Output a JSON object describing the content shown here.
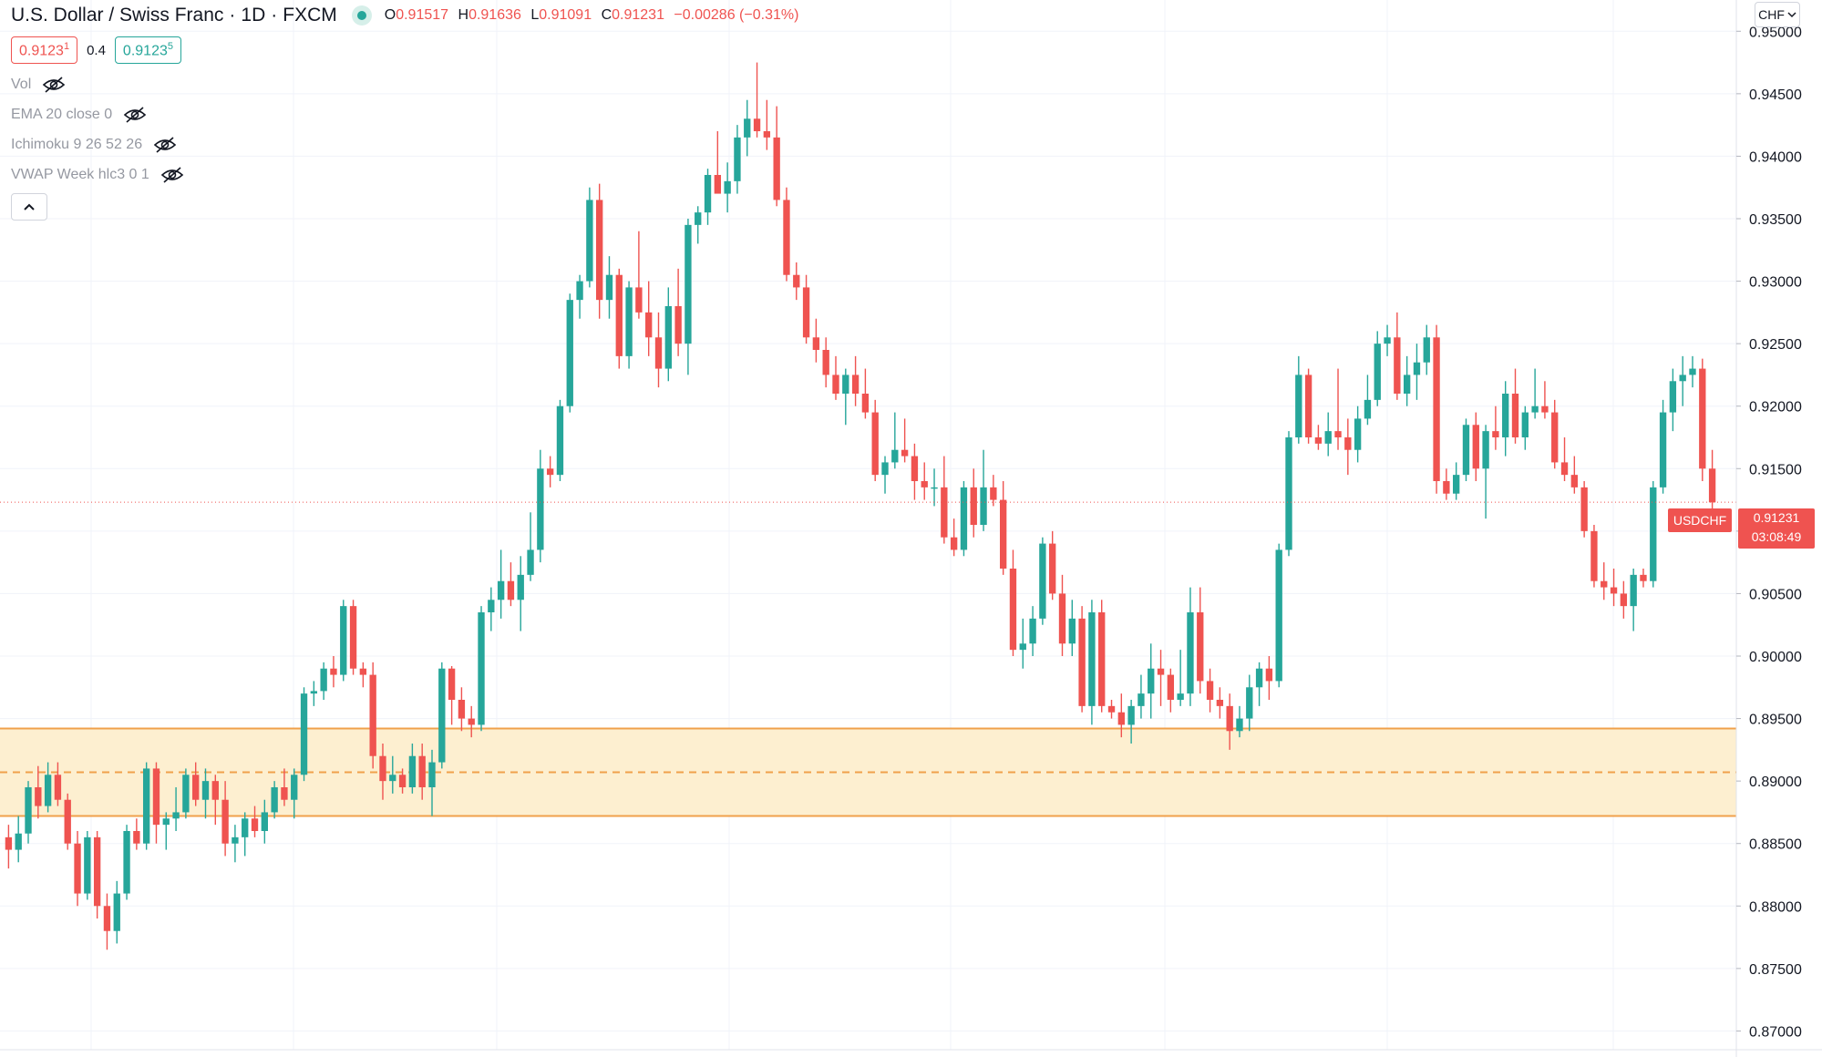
{
  "header": {
    "symbol_name": "U.S. Dollar / Swiss Franc",
    "interval": "1D",
    "exchange": "FXCM",
    "open_key": "O",
    "open": "0.91517",
    "high_key": "H",
    "high": "0.91636",
    "low_key": "L",
    "low": "0.91091",
    "close_key": "C",
    "close": "0.91231",
    "change": "−0.00286 (−0.31%)"
  },
  "trade": {
    "sell_price": "0.9123",
    "sell_sup": "1",
    "spread": "0.4",
    "buy_price": "0.9123",
    "buy_sup": "5"
  },
  "indicators": [
    {
      "label": "Vol"
    },
    {
      "label": "EMA 20 close 0"
    },
    {
      "label": "Ichimoku 9 26 52 26"
    },
    {
      "label": "VWAP Week hlc3 0 1"
    }
  ],
  "currency_button": "CHF",
  "last_price_tag": {
    "symbol": "USDCHF",
    "price": "0.91231",
    "countdown": "03:08:49"
  },
  "colors": {
    "up": "#26a69a",
    "down": "#ef5350",
    "zone_fill": "#fdefd0",
    "zone_line": "#f0a04b",
    "grid": "#f0f3fa"
  },
  "chart_data": {
    "type": "candlestick",
    "title": "U.S. Dollar / Swiss Franc",
    "xlabel": "",
    "ylabel": "",
    "ylim": [
      0.8685,
      0.9525
    ],
    "y_ticks": [
      "0.87000",
      "0.87500",
      "0.88000",
      "0.88500",
      "0.89000",
      "0.89500",
      "0.90000",
      "0.90500",
      "0.91000",
      "0.91500",
      "0.92000",
      "0.92500",
      "0.93000",
      "0.93500",
      "0.94000",
      "0.94500",
      "0.95000"
    ],
    "grid": true,
    "last_price": 0.91231,
    "support_zone": {
      "top": 0.8942,
      "mid": 0.8907,
      "bottom": 0.8872
    },
    "series": [
      {
        "ohlc": [
          [
            0.8855,
            0.8865,
            0.883,
            0.8845
          ],
          [
            0.8845,
            0.8872,
            0.8835,
            0.8858
          ],
          [
            0.8858,
            0.89,
            0.885,
            0.8895
          ],
          [
            0.8895,
            0.8912,
            0.887,
            0.888
          ],
          [
            0.888,
            0.8915,
            0.8875,
            0.8905
          ],
          [
            0.8905,
            0.8915,
            0.888,
            0.8885
          ],
          [
            0.8885,
            0.889,
            0.8845,
            0.885
          ],
          [
            0.885,
            0.886,
            0.88,
            0.881
          ],
          [
            0.881,
            0.886,
            0.8805,
            0.8855
          ],
          [
            0.8855,
            0.886,
            0.879,
            0.88
          ],
          [
            0.88,
            0.881,
            0.8765,
            0.878
          ],
          [
            0.878,
            0.882,
            0.877,
            0.881
          ],
          [
            0.881,
            0.8865,
            0.8805,
            0.886
          ],
          [
            0.886,
            0.887,
            0.8845,
            0.885
          ],
          [
            0.885,
            0.8915,
            0.8845,
            0.891
          ],
          [
            0.891,
            0.8915,
            0.885,
            0.8865
          ],
          [
            0.8865,
            0.8875,
            0.8845,
            0.887
          ],
          [
            0.887,
            0.8895,
            0.886,
            0.8875
          ],
          [
            0.8875,
            0.891,
            0.887,
            0.8905
          ],
          [
            0.8905,
            0.8915,
            0.888,
            0.8885
          ],
          [
            0.8885,
            0.891,
            0.887,
            0.89
          ],
          [
            0.89,
            0.8905,
            0.8865,
            0.8885
          ],
          [
            0.8885,
            0.89,
            0.884,
            0.885
          ],
          [
            0.885,
            0.8865,
            0.8835,
            0.8855
          ],
          [
            0.8855,
            0.8875,
            0.884,
            0.887
          ],
          [
            0.887,
            0.888,
            0.8855,
            0.886
          ],
          [
            0.886,
            0.8885,
            0.885,
            0.8875
          ],
          [
            0.8875,
            0.89,
            0.887,
            0.8895
          ],
          [
            0.8895,
            0.891,
            0.888,
            0.8885
          ],
          [
            0.8885,
            0.891,
            0.887,
            0.8905
          ],
          [
            0.8905,
            0.8975,
            0.89,
            0.897
          ],
          [
            0.897,
            0.898,
            0.896,
            0.8972
          ],
          [
            0.8972,
            0.8995,
            0.8965,
            0.899
          ],
          [
            0.899,
            0.9,
            0.8975,
            0.8985
          ],
          [
            0.8985,
            0.9045,
            0.898,
            0.904
          ],
          [
            0.904,
            0.9045,
            0.8985,
            0.899
          ],
          [
            0.899,
            0.8995,
            0.8975,
            0.8985
          ],
          [
            0.8985,
            0.8995,
            0.891,
            0.892
          ],
          [
            0.892,
            0.893,
            0.8885,
            0.89
          ],
          [
            0.89,
            0.892,
            0.889,
            0.8905
          ],
          [
            0.8905,
            0.891,
            0.889,
            0.8895
          ],
          [
            0.8895,
            0.893,
            0.889,
            0.892
          ],
          [
            0.892,
            0.893,
            0.8885,
            0.8895
          ],
          [
            0.8895,
            0.8925,
            0.8872,
            0.8915
          ],
          [
            0.8915,
            0.8995,
            0.891,
            0.899
          ],
          [
            0.899,
            0.8992,
            0.8945,
            0.8965
          ],
          [
            0.8965,
            0.8975,
            0.894,
            0.895
          ],
          [
            0.895,
            0.896,
            0.8935,
            0.8945
          ],
          [
            0.8945,
            0.904,
            0.894,
            0.9035
          ],
          [
            0.9035,
            0.9055,
            0.902,
            0.9045
          ],
          [
            0.9045,
            0.9085,
            0.903,
            0.906
          ],
          [
            0.906,
            0.9075,
            0.904,
            0.9045
          ],
          [
            0.9045,
            0.908,
            0.902,
            0.9065
          ],
          [
            0.9065,
            0.9115,
            0.906,
            0.9085
          ],
          [
            0.9085,
            0.9165,
            0.9075,
            0.915
          ],
          [
            0.915,
            0.916,
            0.9135,
            0.9145
          ],
          [
            0.9145,
            0.9205,
            0.914,
            0.92
          ],
          [
            0.92,
            0.929,
            0.9195,
            0.9285
          ],
          [
            0.9285,
            0.9305,
            0.927,
            0.93
          ],
          [
            0.93,
            0.9375,
            0.9295,
            0.9365
          ],
          [
            0.9365,
            0.9378,
            0.927,
            0.9285
          ],
          [
            0.9285,
            0.932,
            0.927,
            0.9305
          ],
          [
            0.9305,
            0.931,
            0.923,
            0.924
          ],
          [
            0.924,
            0.93,
            0.923,
            0.9295
          ],
          [
            0.9295,
            0.934,
            0.927,
            0.9275
          ],
          [
            0.9275,
            0.93,
            0.924,
            0.9255
          ],
          [
            0.9255,
            0.9275,
            0.9215,
            0.923
          ],
          [
            0.923,
            0.9295,
            0.922,
            0.928
          ],
          [
            0.928,
            0.931,
            0.924,
            0.925
          ],
          [
            0.925,
            0.935,
            0.9225,
            0.9345
          ],
          [
            0.9345,
            0.936,
            0.933,
            0.9355
          ],
          [
            0.9355,
            0.939,
            0.9345,
            0.9385
          ],
          [
            0.9385,
            0.942,
            0.9375,
            0.937
          ],
          [
            0.937,
            0.9395,
            0.9355,
            0.938
          ],
          [
            0.938,
            0.9425,
            0.937,
            0.9415
          ],
          [
            0.9415,
            0.9445,
            0.94,
            0.943
          ],
          [
            0.943,
            0.9475,
            0.9415,
            0.942
          ],
          [
            0.942,
            0.9445,
            0.9405,
            0.9415
          ],
          [
            0.9415,
            0.944,
            0.936,
            0.9365
          ],
          [
            0.9365,
            0.9375,
            0.93,
            0.9305
          ],
          [
            0.9305,
            0.9315,
            0.9285,
            0.9295
          ],
          [
            0.9295,
            0.9305,
            0.925,
            0.9255
          ],
          [
            0.9255,
            0.927,
            0.9235,
            0.9245
          ],
          [
            0.9245,
            0.9255,
            0.9215,
            0.9225
          ],
          [
            0.9225,
            0.924,
            0.9205,
            0.921
          ],
          [
            0.921,
            0.923,
            0.9185,
            0.9225
          ],
          [
            0.9225,
            0.924,
            0.92,
            0.921
          ],
          [
            0.921,
            0.923,
            0.919,
            0.9195
          ],
          [
            0.9195,
            0.9205,
            0.914,
            0.9145
          ],
          [
            0.9145,
            0.916,
            0.913,
            0.9155
          ],
          [
            0.9155,
            0.9195,
            0.915,
            0.9165
          ],
          [
            0.9165,
            0.919,
            0.9155,
            0.916
          ],
          [
            0.916,
            0.917,
            0.9125,
            0.914
          ],
          [
            0.914,
            0.9155,
            0.9125,
            0.9135
          ],
          [
            0.9135,
            0.915,
            0.912,
            0.9135
          ],
          [
            0.9135,
            0.916,
            0.909,
            0.9095
          ],
          [
            0.9095,
            0.911,
            0.908,
            0.9085
          ],
          [
            0.9085,
            0.914,
            0.908,
            0.9135
          ],
          [
            0.9135,
            0.915,
            0.9095,
            0.9105
          ],
          [
            0.9105,
            0.9165,
            0.91,
            0.9135
          ],
          [
            0.9135,
            0.9145,
            0.912,
            0.9125
          ],
          [
            0.9125,
            0.914,
            0.9065,
            0.907
          ],
          [
            0.907,
            0.9085,
            0.9,
            0.9005
          ],
          [
            0.9005,
            0.903,
            0.899,
            0.901
          ],
          [
            0.901,
            0.904,
            0.9,
            0.903
          ],
          [
            0.903,
            0.9095,
            0.9025,
            0.909
          ],
          [
            0.909,
            0.91,
            0.9045,
            0.905
          ],
          [
            0.905,
            0.9065,
            0.9,
            0.901
          ],
          [
            0.901,
            0.9045,
            0.9,
            0.903
          ],
          [
            0.903,
            0.904,
            0.8955,
            0.896
          ],
          [
            0.896,
            0.9045,
            0.8945,
            0.9035
          ],
          [
            0.9035,
            0.9045,
            0.8955,
            0.896
          ],
          [
            0.896,
            0.8965,
            0.895,
            0.8955
          ],
          [
            0.8955,
            0.897,
            0.8935,
            0.8945
          ],
          [
            0.8945,
            0.8965,
            0.893,
            0.896
          ],
          [
            0.896,
            0.8985,
            0.895,
            0.897
          ],
          [
            0.897,
            0.901,
            0.895,
            0.899
          ],
          [
            0.899,
            0.9005,
            0.896,
            0.8985
          ],
          [
            0.8985,
            0.899,
            0.8955,
            0.8965
          ],
          [
            0.8965,
            0.9005,
            0.896,
            0.897
          ],
          [
            0.897,
            0.9055,
            0.896,
            0.9035
          ],
          [
            0.9035,
            0.9055,
            0.897,
            0.898
          ],
          [
            0.898,
            0.899,
            0.8955,
            0.8965
          ],
          [
            0.8965,
            0.8975,
            0.895,
            0.896
          ],
          [
            0.896,
            0.897,
            0.8925,
            0.894
          ],
          [
            0.894,
            0.896,
            0.8935,
            0.895
          ],
          [
            0.895,
            0.8985,
            0.894,
            0.8975
          ],
          [
            0.8975,
            0.8995,
            0.896,
            0.899
          ],
          [
            0.899,
            0.9,
            0.8965,
            0.898
          ],
          [
            0.898,
            0.909,
            0.8975,
            0.9085
          ],
          [
            0.9085,
            0.918,
            0.908,
            0.9175
          ],
          [
            0.9175,
            0.924,
            0.917,
            0.9225
          ],
          [
            0.9225,
            0.923,
            0.917,
            0.9175
          ],
          [
            0.9175,
            0.9185,
            0.9165,
            0.917
          ],
          [
            0.917,
            0.9195,
            0.916,
            0.918
          ],
          [
            0.918,
            0.923,
            0.9165,
            0.9175
          ],
          [
            0.9175,
            0.919,
            0.9145,
            0.9165
          ],
          [
            0.9165,
            0.92,
            0.9155,
            0.919
          ],
          [
            0.919,
            0.9225,
            0.9185,
            0.9205
          ],
          [
            0.9205,
            0.926,
            0.92,
            0.925
          ],
          [
            0.925,
            0.9265,
            0.924,
            0.9255
          ],
          [
            0.9255,
            0.9275,
            0.9205,
            0.921
          ],
          [
            0.921,
            0.924,
            0.92,
            0.9225
          ],
          [
            0.9225,
            0.925,
            0.9205,
            0.9235
          ],
          [
            0.9235,
            0.9265,
            0.9225,
            0.9255
          ],
          [
            0.9255,
            0.9265,
            0.913,
            0.914
          ],
          [
            0.914,
            0.915,
            0.9125,
            0.913
          ],
          [
            0.913,
            0.9155,
            0.9125,
            0.9145
          ],
          [
            0.9145,
            0.919,
            0.914,
            0.9185
          ],
          [
            0.9185,
            0.9195,
            0.914,
            0.915
          ],
          [
            0.915,
            0.9185,
            0.911,
            0.918
          ],
          [
            0.918,
            0.92,
            0.9165,
            0.9175
          ],
          [
            0.9175,
            0.922,
            0.916,
            0.921
          ],
          [
            0.921,
            0.923,
            0.917,
            0.9175
          ],
          [
            0.9175,
            0.92,
            0.9165,
            0.9195
          ],
          [
            0.9195,
            0.923,
            0.919,
            0.92
          ],
          [
            0.92,
            0.922,
            0.919,
            0.9195
          ],
          [
            0.9195,
            0.9205,
            0.915,
            0.9155
          ],
          [
            0.9155,
            0.9175,
            0.914,
            0.9145
          ],
          [
            0.9145,
            0.916,
            0.913,
            0.9135
          ],
          [
            0.9135,
            0.914,
            0.9095,
            0.91
          ],
          [
            0.91,
            0.9105,
            0.9055,
            0.906
          ],
          [
            0.906,
            0.9075,
            0.9045,
            0.9055
          ],
          [
            0.9055,
            0.907,
            0.904,
            0.905
          ],
          [
            0.905,
            0.906,
            0.903,
            0.904
          ],
          [
            0.904,
            0.907,
            0.902,
            0.9065
          ],
          [
            0.9065,
            0.907,
            0.9055,
            0.906
          ],
          [
            0.906,
            0.914,
            0.9055,
            0.9135
          ],
          [
            0.9135,
            0.9205,
            0.913,
            0.9195
          ],
          [
            0.9195,
            0.923,
            0.918,
            0.922
          ],
          [
            0.922,
            0.924,
            0.92,
            0.9225
          ],
          [
            0.9225,
            0.924,
            0.9215,
            0.923
          ],
          [
            0.923,
            0.9238,
            0.914,
            0.915
          ],
          [
            0.915,
            0.9165,
            0.911,
            0.9123
          ]
        ]
      }
    ]
  }
}
